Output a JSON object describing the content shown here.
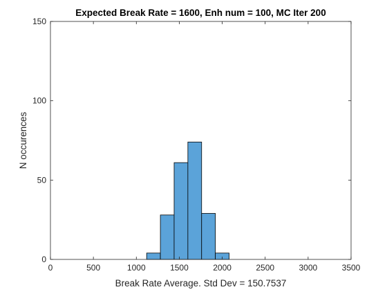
{
  "chart_data": {
    "type": "bar",
    "title": "Expected Break Rate = 1600, Enh num = 100, MC Iter 200",
    "xlabel": "Break Rate Average. Std Dev = 150.7537",
    "ylabel": "N occurences",
    "xlim": [
      0,
      3500
    ],
    "ylim": [
      0,
      150
    ],
    "xticks": [
      0,
      500,
      1000,
      1500,
      2000,
      2500,
      3000,
      3500
    ],
    "yticks": [
      0,
      50,
      100,
      150
    ],
    "grid": false,
    "bin_width": 160,
    "bins": [
      {
        "x0": 1120,
        "x1": 1280,
        "count": 4
      },
      {
        "x0": 1280,
        "x1": 1440,
        "count": 28
      },
      {
        "x0": 1440,
        "x1": 1600,
        "count": 61
      },
      {
        "x0": 1600,
        "x1": 1760,
        "count": 74
      },
      {
        "x0": 1760,
        "x1": 1920,
        "count": 29
      },
      {
        "x0": 1920,
        "x1": 2080,
        "count": 4
      }
    ],
    "bar_color": "#5ba3d9",
    "edge_color": "#000000"
  }
}
